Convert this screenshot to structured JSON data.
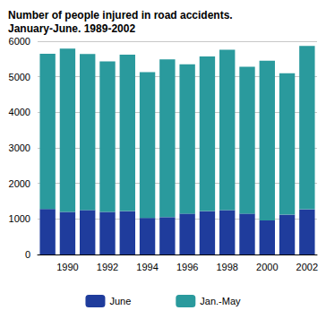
{
  "chart_data": {
    "type": "bar",
    "stacked": true,
    "title": "Number of people injured in road accidents.\nJanuary-June. 1989-2002",
    "categories": [
      null,
      "1990",
      null,
      "1992",
      null,
      "1994",
      null,
      "1996",
      null,
      "1998",
      null,
      "2000",
      null,
      "2002"
    ],
    "series": [
      {
        "name": "June",
        "color": "#1f3c9c",
        "values": [
          1280,
          1200,
          1250,
          1200,
          1220,
          1030,
          1050,
          1150,
          1220,
          1250,
          1150,
          960,
          1120,
          1270
        ]
      },
      {
        "name": "Jan.-May",
        "color": "#2a9a9d",
        "values": [
          4370,
          4590,
          4390,
          4230,
          4400,
          4100,
          4440,
          4200,
          4350,
          4510,
          4130,
          4490,
          3980,
          4600
        ]
      }
    ],
    "ylim": [
      0,
      6000
    ],
    "yticks": [
      0,
      1000,
      2000,
      3000,
      4000,
      5000,
      6000
    ],
    "grid": true,
    "legend": "bottom"
  }
}
